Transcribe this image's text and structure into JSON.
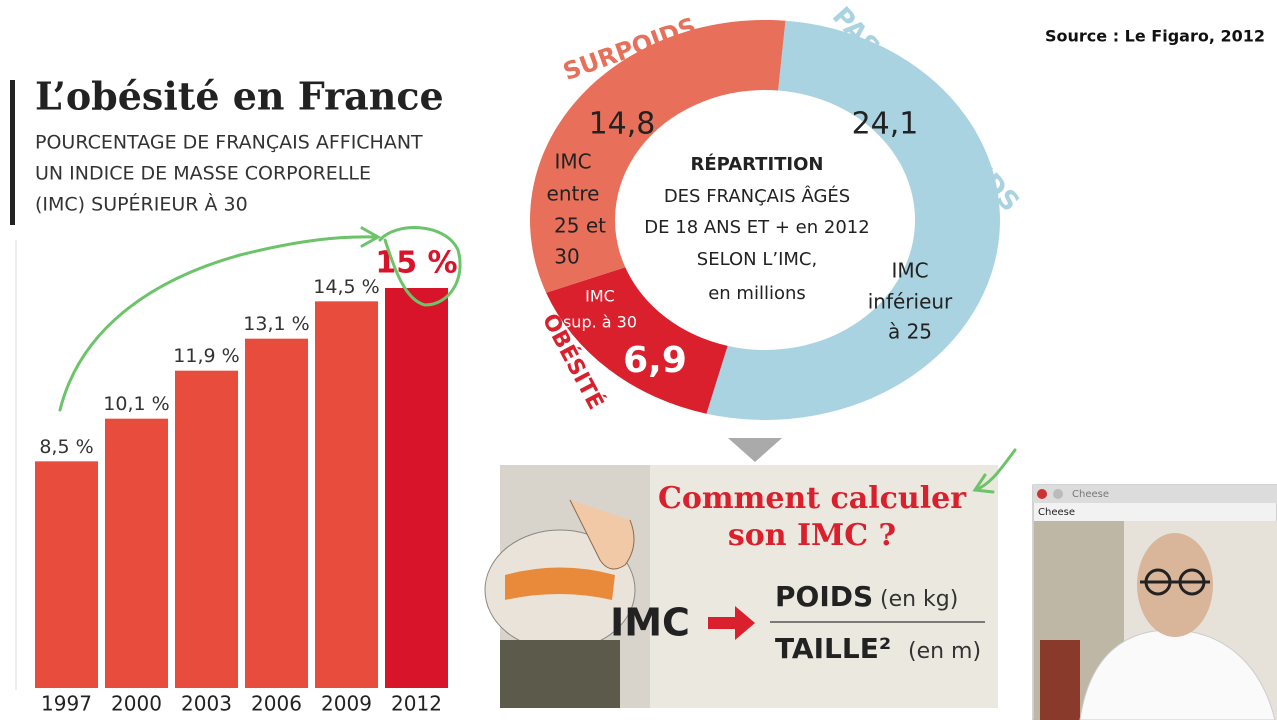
{
  "source": "Source : Le Figaro, 2012",
  "chart_data": [
    {
      "type": "bar",
      "title": "L’obésité en France",
      "subtitle": [
        "POURCENTAGE DE FRANÇAIS AFFICHANT",
        "UN INDICE DE MASSE CORPORELLE",
        "(IMC) SUPÉRIEUR À 30"
      ],
      "categories": [
        "1997",
        "2000",
        "2003",
        "2006",
        "2009",
        "2012"
      ],
      "values": [
        8.5,
        10.1,
        11.9,
        13.1,
        14.5,
        15
      ],
      "value_labels": [
        "8,5 %",
        "10,1 %",
        "11,9 %",
        "13,1 %",
        "14,5 %",
        "15 %"
      ],
      "colors": [
        "#e84c3d",
        "#e84c3d",
        "#e84c3d",
        "#e84c3d",
        "#e84c3d",
        "#d8142a"
      ]
    },
    {
      "type": "donut",
      "center_text": [
        "RÉPARTITION",
        "DES FRANÇAIS ÂGÉS",
        "DE 18 ANS ET + en 2012",
        "SELON L’IMC,",
        "en millions"
      ],
      "categories": [
        "PAS DE SURPOIDS",
        "OBÉSITÉ",
        "SURPOIDS"
      ],
      "values": [
        24.1,
        6.9,
        14.8
      ],
      "value_labels": [
        "24,1",
        "6,9",
        "14,8"
      ],
      "descriptions": [
        [
          "IMC",
          "inférieur",
          "à 25"
        ],
        [
          "IMC",
          "sup. à 30"
        ],
        [
          "IMC",
          "entre",
          "25 et",
          "30"
        ]
      ],
      "colors": [
        "#a9d3e1",
        "#d9202c",
        "#e8705a"
      ]
    }
  ],
  "imc_panel": {
    "heading": [
      "Comment calculer",
      "son IMC ?"
    ],
    "lhs": "IMC",
    "numerator": "POIDS",
    "numerator_unit": "(en kg)",
    "denominator": "TAILLE²",
    "denominator_unit": "(en m)"
  },
  "webcam_window": {
    "title": "Cheese",
    "menu": "Cheese"
  }
}
